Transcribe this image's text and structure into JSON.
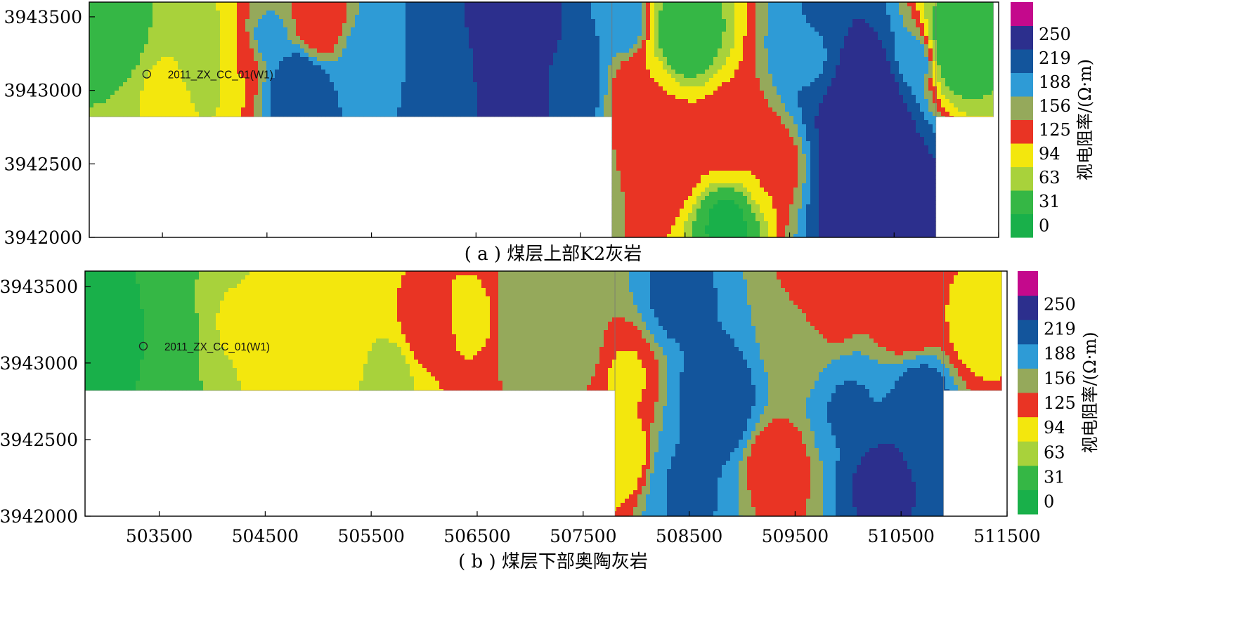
{
  "chart_data": [
    {
      "type": "heatmap",
      "caption": "( a ) 煤层上部K2灰岩",
      "xlim": [
        502800,
        511500
      ],
      "ylim": [
        3942000,
        3943600
      ],
      "yticks": [
        3942000,
        3942500,
        3943000,
        3943500
      ],
      "xticks": [
        503500,
        504500,
        505500,
        506500,
        507500,
        508500,
        509500,
        510500,
        511500
      ],
      "x_tick_labels_shown": false,
      "well": {
        "label": "2011_ZX_CC_01(W1)",
        "x": 503350,
        "y": 3943110
      },
      "colorbar": {
        "label": "视电阻率/(Ω·m)",
        "ticks": [
          0,
          31,
          63,
          94,
          125,
          156,
          188,
          219,
          250
        ]
      },
      "survey_area": [
        {
          "x": [
            502800,
            507800
          ],
          "y": [
            3942820,
            3943600
          ]
        },
        {
          "x": [
            507800,
            510900
          ],
          "y": [
            3942000,
            3943600
          ]
        },
        {
          "x": [
            510900,
            511450
          ],
          "y": [
            3942820,
            3943600
          ]
        }
      ],
      "features": [
        {
          "x": 503100,
          "y": 3943300,
          "value": 40,
          "spread": 450
        },
        {
          "x": 503500,
          "y": 3943000,
          "value": 85,
          "spread": 400
        },
        {
          "x": 503900,
          "y": 3943200,
          "value": 65,
          "spread": 350
        },
        {
          "x": 504200,
          "y": 3943200,
          "value": 110,
          "spread": 250
        },
        {
          "x": 504500,
          "y": 3943350,
          "value": 180,
          "spread": 220
        },
        {
          "x": 504800,
          "y": 3943000,
          "value": 230,
          "spread": 300
        },
        {
          "x": 505000,
          "y": 3943450,
          "value": 115,
          "spread": 250
        },
        {
          "x": 505500,
          "y": 3943200,
          "value": 190,
          "spread": 300
        },
        {
          "x": 506200,
          "y": 3943100,
          "value": 215,
          "spread": 350
        },
        {
          "x": 506800,
          "y": 3943200,
          "value": 255,
          "spread": 400
        },
        {
          "x": 507400,
          "y": 3943050,
          "value": 230,
          "spread": 300
        },
        {
          "x": 507900,
          "y": 3943450,
          "value": 200,
          "spread": 200
        },
        {
          "x": 508100,
          "y": 3942950,
          "value": 110,
          "spread": 300
        },
        {
          "x": 508500,
          "y": 3943350,
          "value": 20,
          "spread": 280
        },
        {
          "x": 508300,
          "y": 3942600,
          "value": 140,
          "spread": 320
        },
        {
          "x": 508900,
          "y": 3942700,
          "value": 120,
          "spread": 300
        },
        {
          "x": 508900,
          "y": 3942100,
          "value": 10,
          "spread": 250
        },
        {
          "x": 509300,
          "y": 3942500,
          "value": 110,
          "spread": 250
        },
        {
          "x": 509700,
          "y": 3943200,
          "value": 200,
          "spread": 250
        },
        {
          "x": 510200,
          "y": 3942900,
          "value": 255,
          "spread": 400
        },
        {
          "x": 510300,
          "y": 3942300,
          "value": 255,
          "spread": 400
        },
        {
          "x": 510700,
          "y": 3943200,
          "value": 190,
          "spread": 200
        },
        {
          "x": 511100,
          "y": 3943300,
          "value": 20,
          "spread": 300
        }
      ]
    },
    {
      "type": "heatmap",
      "caption": "( b ) 煤层下部奥陶灰岩",
      "xlim": [
        502800,
        511500
      ],
      "ylim": [
        3942000,
        3943600
      ],
      "yticks": [
        3942000,
        3942500,
        3943000,
        3943500
      ],
      "xticks": [
        503500,
        504500,
        505500,
        506500,
        507500,
        508500,
        509500,
        510500,
        511500
      ],
      "x_tick_labels_shown": true,
      "well": {
        "label": "2011_ZX_CC_01(W1)",
        "x": 503350,
        "y": 3943110
      },
      "colorbar": {
        "label": "视电阻率/(Ω·m)",
        "ticks": [
          0,
          31,
          63,
          94,
          125,
          156,
          188,
          219,
          250
        ]
      },
      "survey_area": [
        {
          "x": [
            502800,
            507800
          ],
          "y": [
            3942820,
            3943600
          ]
        },
        {
          "x": [
            507800,
            510900
          ],
          "y": [
            3942000,
            3943600
          ]
        },
        {
          "x": [
            510900,
            511450
          ],
          "y": [
            3942820,
            3943600
          ]
        }
      ],
      "features": [
        {
          "x": 503100,
          "y": 3943200,
          "value": 15,
          "spread": 550
        },
        {
          "x": 503700,
          "y": 3943200,
          "value": 45,
          "spread": 300
        },
        {
          "x": 504200,
          "y": 3943250,
          "value": 80,
          "spread": 300
        },
        {
          "x": 504700,
          "y": 3943100,
          "value": 105,
          "spread": 300
        },
        {
          "x": 505200,
          "y": 3943200,
          "value": 85,
          "spread": 300
        },
        {
          "x": 505700,
          "y": 3942950,
          "value": 60,
          "spread": 220
        },
        {
          "x": 506000,
          "y": 3943200,
          "value": 115,
          "spread": 300
        },
        {
          "x": 506500,
          "y": 3943300,
          "value": 100,
          "spread": 250
        },
        {
          "x": 506900,
          "y": 3943300,
          "value": 160,
          "spread": 300
        },
        {
          "x": 507400,
          "y": 3943100,
          "value": 150,
          "spread": 300
        },
        {
          "x": 507900,
          "y": 3942900,
          "value": 105,
          "spread": 250
        },
        {
          "x": 507850,
          "y": 3942400,
          "value": 80,
          "spread": 250
        },
        {
          "x": 508400,
          "y": 3943400,
          "value": 210,
          "spread": 250
        },
        {
          "x": 508800,
          "y": 3942700,
          "value": 220,
          "spread": 350
        },
        {
          "x": 508500,
          "y": 3942200,
          "value": 205,
          "spread": 350
        },
        {
          "x": 509300,
          "y": 3942350,
          "value": 120,
          "spread": 300
        },
        {
          "x": 509500,
          "y": 3943100,
          "value": 160,
          "spread": 300
        },
        {
          "x": 509800,
          "y": 3943450,
          "value": 110,
          "spread": 300
        },
        {
          "x": 510000,
          "y": 3942700,
          "value": 205,
          "spread": 300
        },
        {
          "x": 510300,
          "y": 3942250,
          "value": 245,
          "spread": 250
        },
        {
          "x": 510700,
          "y": 3942800,
          "value": 215,
          "spread": 300
        },
        {
          "x": 510600,
          "y": 3943300,
          "value": 110,
          "spread": 300
        },
        {
          "x": 511200,
          "y": 3943200,
          "value": 100,
          "spread": 300
        }
      ]
    }
  ],
  "palette": [
    "#19b04a",
    "#35b745",
    "#a8d23b",
    "#f3e70d",
    "#e93424",
    "#95a95b",
    "#2e9bd6",
    "#13559c",
    "#2c2f8d",
    "#c4098c"
  ]
}
